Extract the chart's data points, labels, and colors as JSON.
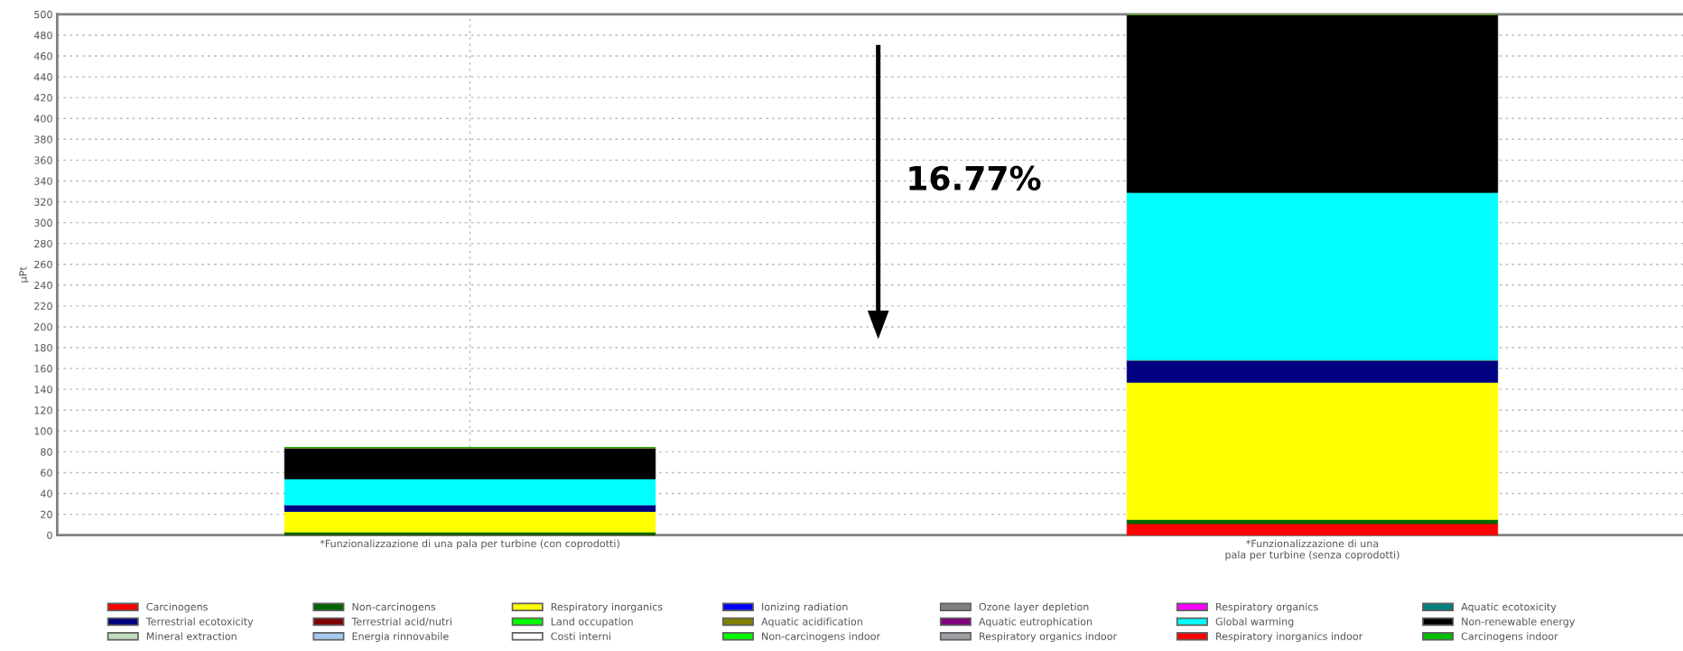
{
  "chart_data": {
    "type": "bar",
    "stacked": true,
    "ylabel": "µPt",
    "categories": [
      "*Funzionalizzazione di una pala per turbine (con coprodotti)",
      "*Funzionalizzazione di una\npala per turbine (senza coprodotti)"
    ],
    "series": [
      {
        "name": "Carcinogens",
        "color": "#ff0000",
        "values": [
          null,
          11
        ]
      },
      {
        "name": "Non-carcinogens",
        "color": "#006400",
        "values": [
          3,
          4
        ]
      },
      {
        "name": "Respiratory inorganics",
        "color": "#ffff00",
        "values": [
          20,
          132
        ]
      },
      {
        "name": "Ionizing radiation",
        "color": "#0000ff",
        "values": [
          0,
          0
        ]
      },
      {
        "name": "Ozone layer depletion",
        "color": "#808080",
        "values": [
          0,
          0
        ]
      },
      {
        "name": "Respiratory organics",
        "color": "#ff00ff",
        "values": [
          0,
          0
        ]
      },
      {
        "name": "Aquatic ecotoxicity",
        "color": "#008080",
        "values": [
          0,
          0
        ]
      },
      {
        "name": "Terrestrial ecotoxicity",
        "color": "#000080",
        "values": [
          6,
          21
        ]
      },
      {
        "name": "Terrestrial acid/nutri",
        "color": "#800000",
        "values": [
          0,
          0
        ]
      },
      {
        "name": "Land occupation",
        "color": "#00ff00",
        "values": [
          0,
          0
        ]
      },
      {
        "name": "Aquatic acidification",
        "color": "#808000",
        "values": [
          0,
          0
        ]
      },
      {
        "name": "Aquatic eutrophication",
        "color": "#800080",
        "values": [
          0,
          0
        ]
      },
      {
        "name": "Global warming",
        "color": "#00ffff",
        "values": [
          25,
          161
        ]
      },
      {
        "name": "Non-renewable energy",
        "color": "#000000",
        "values": [
          30,
          171
        ]
      },
      {
        "name": "Mineral extraction",
        "color": "#c0dcc0",
        "values": [
          0,
          0
        ]
      },
      {
        "name": "Energia rinnovabile",
        "color": "#a6caf0",
        "values": [
          0,
          0
        ]
      },
      {
        "name": "Costi interni",
        "color": "#ffffff",
        "values": [
          0,
          0
        ]
      },
      {
        "name": "Non-carcinogens indoor",
        "color": "#00ff00",
        "values": [
          0,
          0
        ]
      },
      {
        "name": "Respiratory organics indoor",
        "color": "#a0a0a4",
        "values": [
          0,
          0
        ]
      },
      {
        "name": "Respiratory inorganics indoor",
        "color": "#ff0000",
        "values": [
          0,
          0
        ]
      },
      {
        "name": "Carcinogens indoor",
        "color": "#00c000",
        "values": [
          0,
          0
        ]
      }
    ],
    "ylim": [
      0,
      500
    ],
    "yticks": [
      0,
      20,
      40,
      60,
      80,
      100,
      120,
      140,
      160,
      180,
      200,
      220,
      240,
      260,
      280,
      300,
      320,
      340,
      360,
      380,
      400,
      420,
      440,
      460,
      480,
      500
    ],
    "grid": true,
    "legend": "bottom",
    "annotations": [
      "16.77%"
    ]
  }
}
